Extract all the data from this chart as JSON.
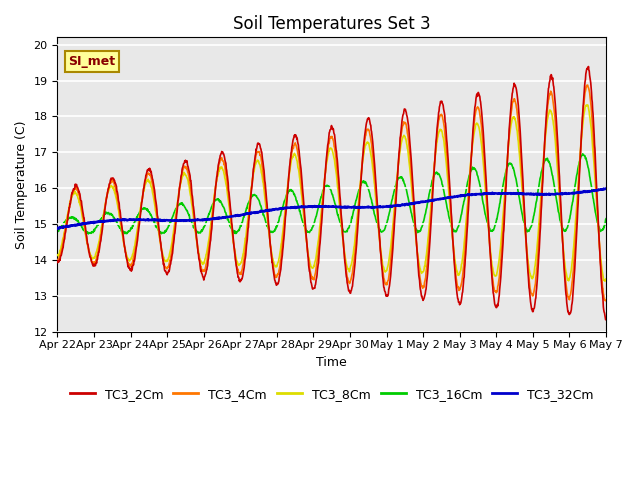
{
  "title": "Soil Temperatures Set 3",
  "xlabel": "Time",
  "ylabel": "Soil Temperature (C)",
  "ylim": [
    12.0,
    20.2
  ],
  "yticks": [
    12.0,
    13.0,
    14.0,
    15.0,
    16.0,
    17.0,
    18.0,
    19.0,
    20.0
  ],
  "series_colors": {
    "TC3_2Cm": "#cc0000",
    "TC3_4Cm": "#ff7700",
    "TC3_8Cm": "#dddd00",
    "TC3_16Cm": "#00cc00",
    "TC3_32Cm": "#0000cc"
  },
  "series_linewidths": {
    "TC3_2Cm": 1.2,
    "TC3_4Cm": 1.2,
    "TC3_8Cm": 1.2,
    "TC3_16Cm": 1.2,
    "TC3_32Cm": 1.8
  },
  "bg_color": "#e8e8e8",
  "fig_bg": "#ffffff",
  "annotation_text": "SI_met",
  "annotation_bg": "#ffff99",
  "annotation_border": "#aa8800",
  "title_fontsize": 12,
  "axis_label_fontsize": 9,
  "tick_fontsize": 8,
  "legend_fontsize": 9,
  "xtick_labels": [
    "Apr 22",
    "Apr 23",
    "Apr 24",
    "Apr 25",
    "Apr 26",
    "Apr 27",
    "Apr 28",
    "Apr 29",
    "Apr 30",
    "May 1",
    "May 2",
    "May 3",
    "May 4",
    "May 5",
    "May 6",
    "May 7"
  ],
  "xtick_positions": [
    0,
    1,
    2,
    3,
    4,
    5,
    6,
    7,
    8,
    9,
    10,
    11,
    12,
    13,
    14,
    15
  ]
}
